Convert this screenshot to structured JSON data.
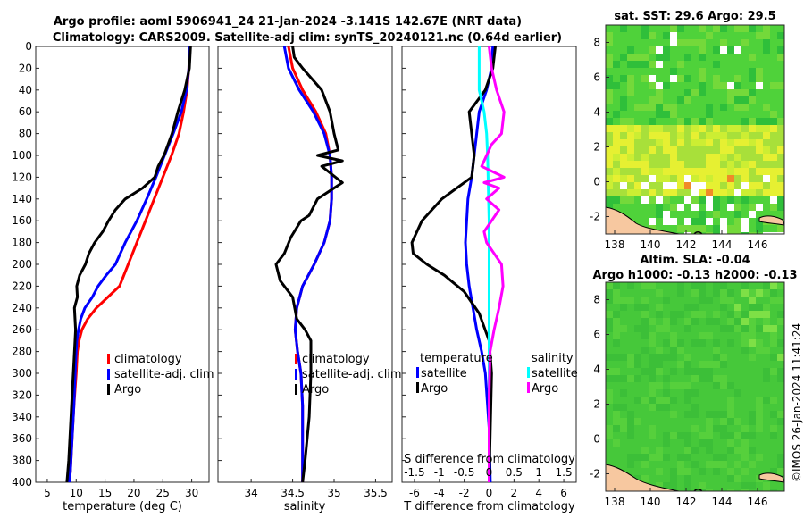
{
  "header": {
    "title_line1": "Argo profile: aoml 5906941_24 21-Jan-2024 -3.141S 142.67E (NRT data)",
    "title_line2": "Climatology: CARS2009. Satellite-adj clim: synTS_20240121.nc (0.64d earlier)"
  },
  "credit": "©IMOS 26-Jan-2024 11:41:24",
  "colors": {
    "climatology": "#ff0000",
    "satellite": "#0000ff",
    "argo": "#000000",
    "sal_satellite": "#00ffff",
    "sal_argo": "#ff00ff",
    "land": "#f7c8a0"
  },
  "chart_data": [
    {
      "type": "line",
      "id": "temperature",
      "xlabel": "temperature (deg C)",
      "ylabel": "",
      "xlim": [
        3,
        33
      ],
      "ylim": [
        400,
        0
      ],
      "xticks": [
        5,
        10,
        15,
        20,
        25,
        30
      ],
      "yticks": [
        0,
        20,
        40,
        60,
        80,
        100,
        120,
        140,
        160,
        180,
        200,
        220,
        240,
        260,
        280,
        300,
        320,
        340,
        360,
        380,
        400
      ],
      "legend": [
        "climatology",
        "satellite-adj. clim",
        "Argo"
      ],
      "series": [
        {
          "name": "climatology",
          "color": "#ff0000",
          "x": [
            29.6,
            29.5,
            29.2,
            28.6,
            27.8,
            26.5,
            25,
            23.5,
            22,
            20.5,
            19,
            17.5,
            15.5,
            13.5,
            12,
            11,
            10.5,
            10.2,
            10,
            9.6,
            9.3,
            9,
            8.8
          ],
          "y": [
            0,
            20,
            40,
            60,
            80,
            100,
            120,
            140,
            160,
            180,
            200,
            220,
            230,
            240,
            250,
            260,
            270,
            280,
            300,
            330,
            360,
            390,
            400
          ]
        },
        {
          "name": "satellite-adj. clim",
          "color": "#0000ff",
          "x": [
            29.6,
            29.5,
            29.1,
            28.2,
            26.8,
            25.3,
            23.8,
            22.2,
            20.5,
            18.5,
            16.8,
            15.2,
            13.8,
            12.8,
            11.5,
            10.8,
            10.4,
            10.1,
            9.9,
            9.6,
            9.3,
            9,
            8.8
          ],
          "y": [
            0,
            20,
            40,
            60,
            80,
            100,
            120,
            140,
            160,
            180,
            200,
            210,
            220,
            230,
            240,
            250,
            260,
            270,
            290,
            330,
            360,
            390,
            400
          ]
        },
        {
          "name": "Argo",
          "color": "#000000",
          "x": [
            29.8,
            29.6,
            28.8,
            27.6,
            26.6,
            25.2,
            24.2,
            23.6,
            21.5,
            18.5,
            16.8,
            15.6,
            14.6,
            13.2,
            12.2,
            11.6,
            10.6,
            10.1,
            10.2,
            9.7,
            9.9,
            9.6,
            9.3,
            9,
            8.7,
            8.4
          ],
          "y": [
            0,
            20,
            40,
            60,
            80,
            100,
            110,
            120,
            130,
            140,
            150,
            160,
            170,
            180,
            190,
            200,
            210,
            220,
            230,
            240,
            260,
            290,
            320,
            350,
            380,
            400
          ]
        }
      ]
    },
    {
      "type": "line",
      "id": "salinity",
      "xlabel": "salinity",
      "ylabel": "",
      "xlim": [
        33.6,
        35.7
      ],
      "ylim": [
        400,
        0
      ],
      "xticks": [
        34,
        34.5,
        35,
        35.5
      ],
      "legend": [
        "climatology",
        "satellite-adj. clim",
        "Argo"
      ],
      "series": [
        {
          "name": "climatology",
          "color": "#ff0000",
          "x": [
            34.45,
            34.5,
            34.62,
            34.78,
            34.9,
            34.95,
            34.97,
            34.97,
            34.95,
            34.88,
            34.76,
            34.62,
            34.55,
            34.53,
            34.56,
            34.6,
            34.62,
            34.62,
            34.62
          ],
          "y": [
            0,
            20,
            40,
            60,
            80,
            100,
            120,
            140,
            160,
            180,
            200,
            220,
            240,
            260,
            280,
            300,
            330,
            370,
            400
          ]
        },
        {
          "name": "satellite-adj. clim",
          "color": "#0000ff",
          "x": [
            34.4,
            34.45,
            34.58,
            34.75,
            34.88,
            34.95,
            34.97,
            34.97,
            34.95,
            34.88,
            34.76,
            34.62,
            34.55,
            34.53,
            34.56,
            34.6,
            34.62,
            34.62,
            34.62
          ],
          "y": [
            0,
            20,
            40,
            60,
            80,
            100,
            120,
            140,
            160,
            180,
            200,
            220,
            240,
            260,
            280,
            300,
            330,
            370,
            400
          ]
        },
        {
          "name": "Argo",
          "color": "#000000",
          "x": [
            34.5,
            34.52,
            34.62,
            34.85,
            34.95,
            35.0,
            35.05,
            34.8,
            35.1,
            34.85,
            35.1,
            34.8,
            34.7,
            34.6,
            34.48,
            34.4,
            34.3,
            34.35,
            34.5,
            34.55,
            34.65,
            34.72,
            34.72,
            34.7,
            34.65,
            34.62
          ],
          "y": [
            0,
            10,
            20,
            40,
            60,
            80,
            95,
            100,
            105,
            110,
            125,
            140,
            155,
            160,
            175,
            190,
            200,
            215,
            230,
            250,
            260,
            270,
            300,
            340,
            380,
            400
          ]
        }
      ]
    },
    {
      "type": "line",
      "id": "differences",
      "xlabel": "T difference from climatology",
      "xlabel_top": "S difference from climatology",
      "xlim": [
        -7,
        7
      ],
      "ylim": [
        400,
        0
      ],
      "xticks": [
        -6,
        -4,
        -2,
        0,
        2,
        4,
        6
      ],
      "xticks_top": [
        "-1.5",
        "-1",
        "-0.5",
        "0",
        "0.5",
        "1",
        "1.5"
      ],
      "legend_groups": {
        "temperature": [
          "satellite",
          "Argo"
        ],
        "salinity": [
          "satellite",
          "Argo"
        ]
      },
      "legend_titles": {
        "temperature": "temperature",
        "salinity": "salinity"
      },
      "series": [
        {
          "name": "T satellite",
          "color": "#0000ff",
          "x": [
            0.3,
            0.2,
            -0.2,
            -0.8,
            -1.0,
            -1.2,
            -1.4,
            -1.7,
            -1.8,
            -1.9,
            -1.8,
            -1.6,
            -1.3,
            -1.0,
            -0.6,
            -0.3,
            0,
            0.1
          ],
          "y": [
            0,
            20,
            40,
            60,
            80,
            100,
            120,
            140,
            160,
            180,
            200,
            220,
            240,
            260,
            280,
            300,
            350,
            400
          ]
        },
        {
          "name": "T Argo",
          "color": "#000000",
          "x": [
            0.5,
            0.3,
            -0.3,
            -1.6,
            -1.4,
            -1.2,
            -1.4,
            -3.8,
            -5.4,
            -6.2,
            -6.1,
            -5.0,
            -3.6,
            -2.0,
            -0.8,
            0,
            0.2,
            0.1,
            0
          ],
          "y": [
            0,
            20,
            40,
            60,
            80,
            100,
            120,
            140,
            160,
            180,
            190,
            200,
            210,
            225,
            245,
            270,
            300,
            350,
            400
          ]
        },
        {
          "name": "S satellite",
          "color": "#00ffff",
          "x": [
            -0.2,
            -0.2,
            -0.2,
            -0.1,
            -0.05,
            -0.03,
            -0.02,
            -0.01,
            0,
            0,
            0,
            0,
            0,
            0,
            0
          ],
          "y": [
            0,
            20,
            40,
            60,
            80,
            100,
            120,
            140,
            160,
            200,
            240,
            280,
            320,
            360,
            400
          ]
        },
        {
          "name": "S Argo",
          "color": "#ff00ff",
          "x": [
            0,
            0.05,
            0.15,
            0.3,
            0.25,
            0.05,
            0.0,
            -0.05,
            -0.15,
            0.3,
            -0.1,
            0.2,
            -0.05,
            0.2,
            0.05,
            -0.1,
            -0.05,
            0.1,
            0.25,
            0.28,
            0.2,
            0.1,
            0.02,
            0,
            0
          ],
          "y": [
            0,
            20,
            40,
            60,
            80,
            90,
            95,
            100,
            110,
            120,
            125,
            130,
            140,
            150,
            160,
            170,
            180,
            190,
            200,
            220,
            240,
            260,
            280,
            320,
            400
          ]
        }
      ]
    },
    {
      "type": "heatmap",
      "id": "sst-map",
      "title": "sat. SST: 29.6 Argo: 29.5",
      "xlim": [
        137.5,
        147.5
      ],
      "ylim": [
        -3,
        9
      ],
      "xticks": [
        138,
        140,
        142,
        144,
        146
      ],
      "yticks": [
        -2,
        0,
        2,
        4,
        6,
        8
      ],
      "marker": {
        "lon": 142.67,
        "lat": -3.141
      }
    },
    {
      "type": "heatmap",
      "id": "sla-map",
      "title_line1": "Altim. SLA: -0.04",
      "title_line2": "Argo h1000: -0.13 h2000: -0.13",
      "xlim": [
        137.5,
        147.5
      ],
      "ylim": [
        -3,
        9
      ],
      "xticks": [
        138,
        140,
        142,
        144,
        146
      ],
      "yticks": [
        -2,
        0,
        2,
        4,
        6,
        8
      ],
      "marker": {
        "lon": 142.67,
        "lat": -3.141
      }
    }
  ]
}
